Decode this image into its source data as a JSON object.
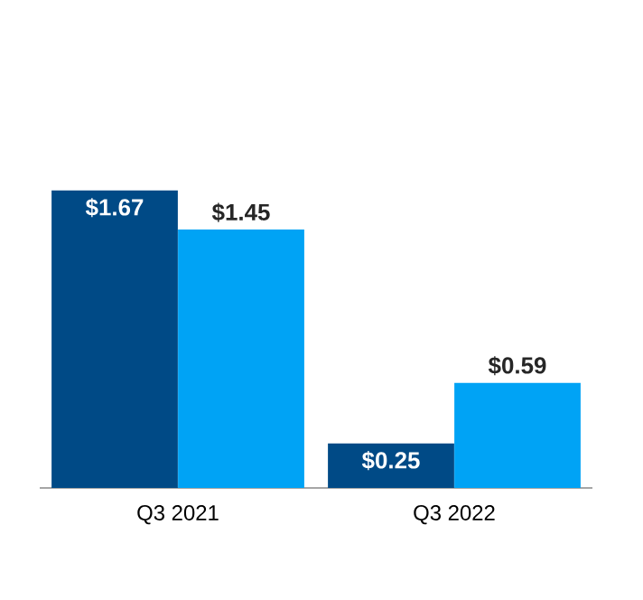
{
  "chart_data": {
    "type": "bar",
    "categories": [
      "Q3 2021",
      "Q3 2022"
    ],
    "series": [
      {
        "color": "#004a86",
        "values": [
          1.67,
          0.25
        ],
        "value_labels": [
          "$1.67",
          "$0.25"
        ]
      },
      {
        "color": "#00a3f5",
        "values": [
          1.45,
          0.59
        ],
        "value_labels": [
          "$1.45",
          "$0.59"
        ]
      }
    ]
  }
}
